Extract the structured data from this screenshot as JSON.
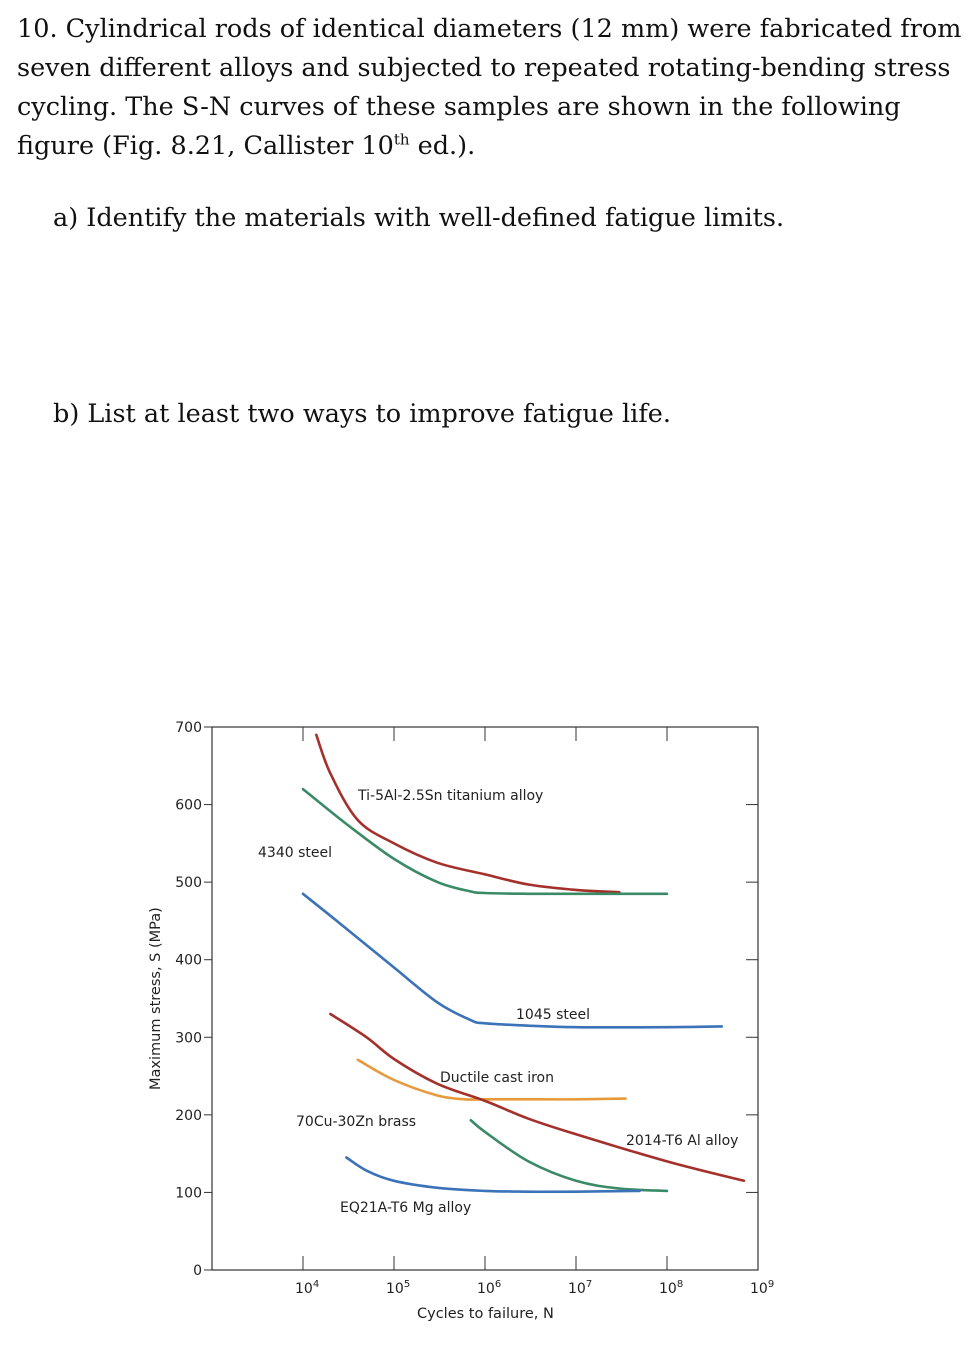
{
  "question": {
    "number": "10.",
    "text_before_sup": " Cylindrical rods of identical diameters (12 mm) were fabricated from seven different alloys and subjected to repeated rotating-bending stress cycling. The S-N curves of these samples are shown in the following figure (Fig. 8.21, Callister 10",
    "sup": "th",
    "text_after_sup": " ed.)."
  },
  "part_a": "a) Identify the materials with well-defined fatigue limits.",
  "part_b": "b) List at least two ways to improve fatigue life.",
  "chart_data": {
    "type": "line",
    "title": "",
    "xlabel": "Cycles to failure, N",
    "ylabel": "Maximum stress, S (MPa)",
    "xscale": "log",
    "xlim": [
      1000,
      1000000000
    ],
    "ylim": [
      0,
      700
    ],
    "x_tick_labels": [
      {
        "base": "10",
        "exp": "4",
        "value": 10000
      },
      {
        "base": "10",
        "exp": "5",
        "value": 100000
      },
      {
        "base": "10",
        "exp": "6",
        "value": 1000000
      },
      {
        "base": "10",
        "exp": "7",
        "value": 10000000
      },
      {
        "base": "10",
        "exp": "8",
        "value": 100000000
      },
      {
        "base": "10",
        "exp": "9",
        "value": 1000000000
      }
    ],
    "y_ticks": [
      0,
      100,
      200,
      300,
      400,
      500,
      600,
      700
    ],
    "grid": false,
    "series": [
      {
        "name": "Ti-5Al-2.5Sn titanium alloy",
        "color": "#a4302c",
        "x": [
          14000,
          20000,
          40000,
          100000,
          300000,
          1000000,
          3000000,
          10000000,
          30000000
        ],
        "y": [
          690,
          640,
          580,
          550,
          525,
          510,
          497,
          490,
          487
        ]
      },
      {
        "name": "4340 steel",
        "color": "#3a8a68",
        "x": [
          10000,
          30000,
          100000,
          300000,
          700000,
          1000000,
          3000000,
          10000000,
          100000000
        ],
        "y": [
          620,
          575,
          530,
          500,
          488,
          486,
          485,
          485,
          485
        ]
      },
      {
        "name": "1045 steel",
        "color": "#3b72b8",
        "x": [
          10000,
          30000,
          100000,
          300000,
          700000,
          1000000,
          3000000,
          10000000,
          100000000,
          400000000
        ],
        "y": [
          485,
          440,
          390,
          345,
          322,
          318,
          315,
          313,
          313,
          314
        ]
      },
      {
        "name": "Ductile cast iron",
        "color": "#e79a3c",
        "x": [
          40000,
          100000,
          300000,
          600000,
          1000000,
          3000000,
          10000000,
          35000000
        ],
        "y": [
          271,
          245,
          225,
          220,
          220,
          220,
          220,
          221
        ]
      },
      {
        "name": "2014-T6 Al alloy",
        "color": "#a4302c",
        "x": [
          20000,
          50000,
          100000,
          300000,
          1000000,
          3000000,
          10000000,
          100000000,
          700000000
        ],
        "y": [
          330,
          300,
          272,
          240,
          218,
          195,
          175,
          140,
          115
        ]
      },
      {
        "name": "70Cu-30Zn brass",
        "color": "#3a8a68",
        "x": [
          700000,
          1000000,
          3000000,
          10000000,
          30000000,
          100000000
        ],
        "y": [
          193,
          178,
          140,
          115,
          105,
          102
        ]
      },
      {
        "name": "EQ21A-T6 Mg alloy",
        "color": "#3b72b8",
        "x": [
          30000,
          50000,
          100000,
          300000,
          1000000,
          3000000,
          10000000,
          50000000
        ],
        "y": [
          145,
          128,
          115,
          106,
          102,
          101,
          101,
          102
        ]
      }
    ]
  }
}
